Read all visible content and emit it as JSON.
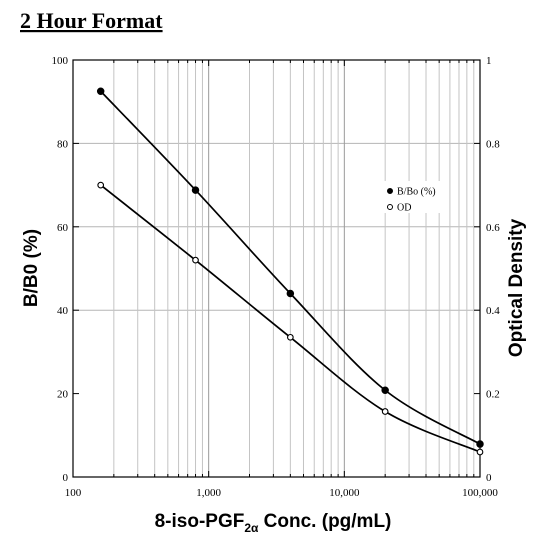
{
  "chart_data": {
    "type": "line",
    "title": "2 Hour Format",
    "xlabel": {
      "prefix": "8-iso-PGF",
      "subscript": "2α",
      "suffix": " Conc. (pg/mL)"
    },
    "ylabel": "B/B0 (%)",
    "y2label": "Optical Density",
    "xscale": "log",
    "xlim": [
      100,
      100000
    ],
    "ylim": [
      0,
      100
    ],
    "y2lim": [
      0,
      1
    ],
    "xticks": [
      100,
      1000,
      10000,
      100000
    ],
    "xtick_labels": [
      "100",
      "1,000",
      "10,000",
      "100,000"
    ],
    "yticks": [
      0,
      20,
      40,
      60,
      80,
      100
    ],
    "ytick_labels": [
      "0",
      "20",
      "40",
      "60",
      "80",
      "100"
    ],
    "y2ticks": [
      0,
      0.2,
      0.4,
      0.6,
      0.8,
      1
    ],
    "y2tick_labels": [
      "0",
      "0.2",
      "0.4",
      "0.6",
      "0.8",
      "1"
    ],
    "grid": true,
    "legend_position": "right",
    "series": [
      {
        "name": "B/Bo (%)",
        "axis": "left",
        "marker": "filled-circle",
        "x": [
          160,
          800,
          4000,
          20000,
          100000
        ],
        "y": [
          92.5,
          68.8,
          44.0,
          20.8,
          7.9
        ]
      },
      {
        "name": "OD",
        "axis": "right",
        "marker": "open-circle",
        "x": [
          160,
          800,
          4000,
          20000,
          100000
        ],
        "y": [
          0.7,
          0.52,
          0.335,
          0.157,
          0.06
        ]
      }
    ]
  }
}
